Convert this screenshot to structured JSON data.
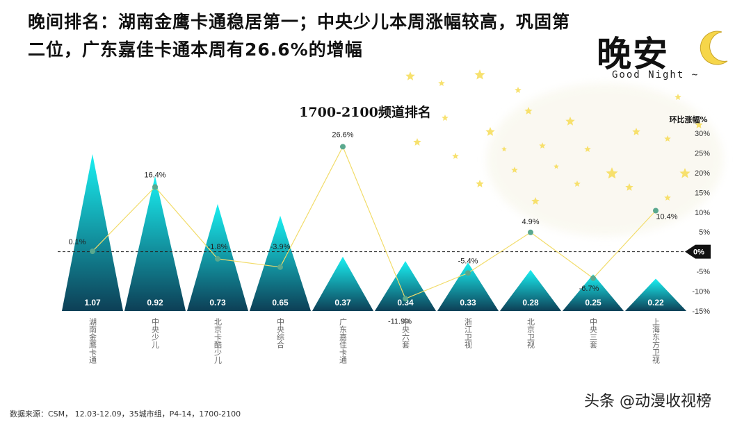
{
  "headline": "晚间排名：湖南金鹰卡通稳居第一；中央少儿本周涨幅较高，巩固第二位，广东嘉佳卡通本周有26.6%的增幅",
  "logo": {
    "main": "晚安",
    "sub": "Good Night ~"
  },
  "source": "数据来源：CSM， 12.03-12.09，35城市组，P4-14，1700-2100",
  "watermark": "头条 @动漫收视榜",
  "chart_data": {
    "type": "bar",
    "title": "1700-2100频道排名",
    "categories": [
      "湖南金鹰卡通",
      "中央少儿",
      "北京卡酷少儿",
      "中央综合",
      "广东嘉佳卡通",
      "中央六套",
      "浙江卫视",
      "北京卫视",
      "中央三套",
      "上海东方卫视"
    ],
    "series": [
      {
        "values": [
          1.07,
          0.92,
          0.73,
          0.65,
          0.37,
          0.34,
          0.33,
          0.28,
          0.25,
          0.22
        ],
        "labels": [
          "1.07",
          "0.92",
          "0.73",
          "0.65",
          "0.37",
          "0.34",
          "0.33",
          "0.28",
          "0.25",
          "0.22"
        ]
      },
      {
        "name": "环比涨幅%",
        "type": "line",
        "axis": "right",
        "values": [
          0.1,
          16.4,
          -1.8,
          -3.9,
          26.6,
          -11.9,
          -5.4,
          4.9,
          -6.7,
          10.4
        ],
        "labels": [
          "0.1%",
          "16.4%",
          "-1.8%",
          "-3.9%",
          "26.6%",
          "-11.9%",
          "-5.4%",
          "4.9%",
          "-6.7%",
          "10.4%"
        ]
      }
    ],
    "y2label": "环比涨幅%",
    "y2lim": [
      -15,
      30
    ],
    "y2ticks": [
      "30%",
      "25%",
      "20%",
      "15%",
      "10%",
      "5%",
      "0%",
      "-5%",
      "-10%",
      "-15%"
    ],
    "y2tickvalues": [
      30,
      25,
      20,
      15,
      10,
      5,
      0,
      -5,
      -10,
      -15
    ],
    "zero_label": "0%",
    "colors": {
      "bar_top": "#19f0f2",
      "bar_bottom": "#0d3f56",
      "line": "#f2dc6a",
      "marker": "#5aa88e"
    }
  }
}
